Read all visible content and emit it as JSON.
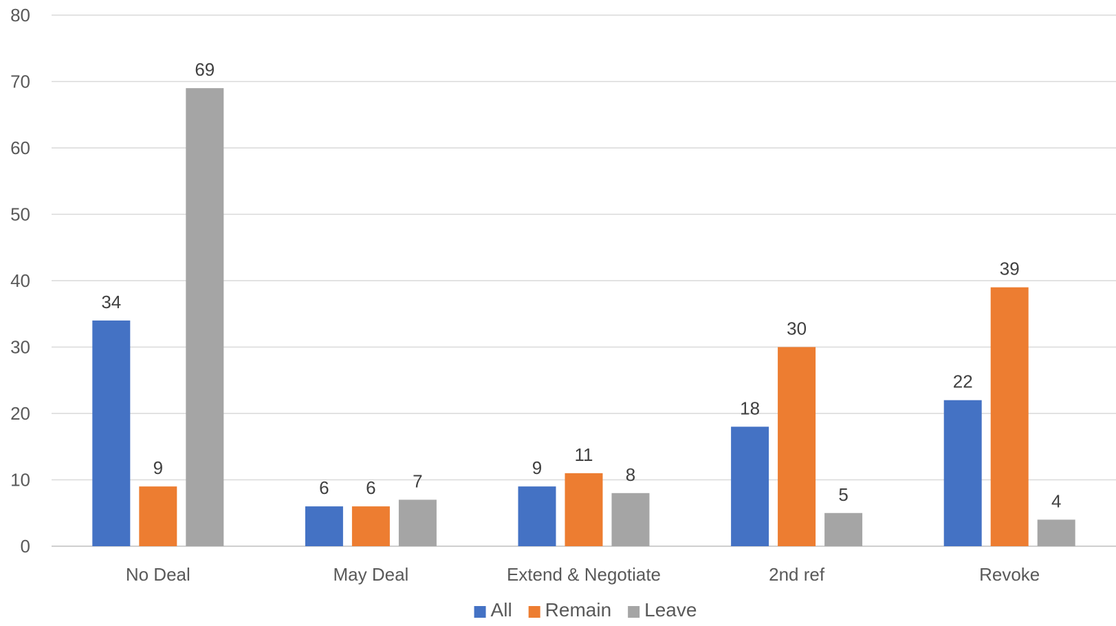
{
  "chart_data": {
    "type": "bar",
    "title": "",
    "xlabel": "",
    "ylabel": "",
    "ylim": [
      0,
      80
    ],
    "yticks": [
      0,
      10,
      20,
      30,
      40,
      50,
      60,
      70,
      80
    ],
    "grid": true,
    "legend_position": "bottom-center",
    "categories": [
      "No Deal",
      "May Deal",
      "Extend & Negotiate",
      "2nd ref",
      "Revoke"
    ],
    "series": [
      {
        "name": "All",
        "color": "#4472c4",
        "values": [
          34,
          6,
          9,
          18,
          22
        ]
      },
      {
        "name": "Remain",
        "color": "#ed7d31",
        "values": [
          9,
          6,
          11,
          30,
          39
        ]
      },
      {
        "name": "Leave",
        "color": "#a5a5a5",
        "values": [
          69,
          7,
          8,
          5,
          4
        ]
      }
    ]
  }
}
